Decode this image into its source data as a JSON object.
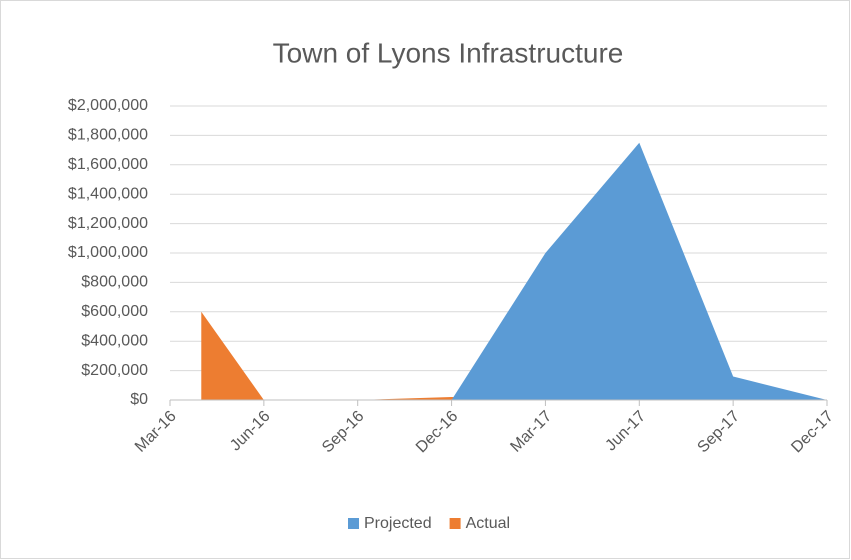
{
  "chart_data": {
    "type": "area",
    "title": "Town of Lyons Infrastructure",
    "x": [
      "2016-04",
      "2016-06",
      "2016-09",
      "2016-12",
      "2017-03",
      "2017-06",
      "2017-09",
      "2017-12"
    ],
    "series": [
      {
        "name": "Projected",
        "color": "#5b9bd5",
        "values": [
          null,
          null,
          null,
          0,
          1000000,
          1750000,
          160000,
          0
        ]
      },
      {
        "name": "Actual",
        "color": "#ed7d31",
        "values": [
          600000,
          0,
          0,
          20000,
          0,
          null,
          null,
          null
        ]
      }
    ],
    "xlim": [
      "2016-03",
      "2017-12"
    ],
    "xticks": [
      {
        "value": "2016-03",
        "label": "Mar-16"
      },
      {
        "value": "2016-06",
        "label": "Jun-16"
      },
      {
        "value": "2016-09",
        "label": "Sep-16"
      },
      {
        "value": "2016-12",
        "label": "Dec-16"
      },
      {
        "value": "2017-03",
        "label": "Mar-17"
      },
      {
        "value": "2017-06",
        "label": "Jun-17"
      },
      {
        "value": "2017-09",
        "label": "Sep-17"
      },
      {
        "value": "2017-12",
        "label": "Dec-17"
      }
    ],
    "ylim": [
      0,
      2000000
    ],
    "yticks": [
      {
        "value": 0,
        "label": "$0"
      },
      {
        "value": 200000,
        "label": "$200,000"
      },
      {
        "value": 400000,
        "label": "$400,000"
      },
      {
        "value": 600000,
        "label": "$600,000"
      },
      {
        "value": 800000,
        "label": "$800,000"
      },
      {
        "value": 1000000,
        "label": "$1,000,000"
      },
      {
        "value": 1200000,
        "label": "$1,200,000"
      },
      {
        "value": 1400000,
        "label": "$1,400,000"
      },
      {
        "value": 1600000,
        "label": "$1,600,000"
      },
      {
        "value": 1800000,
        "label": "$1,800,000"
      },
      {
        "value": 2000000,
        "label": "$2,000,000"
      }
    ],
    "grid": true,
    "legend": "bottom"
  }
}
